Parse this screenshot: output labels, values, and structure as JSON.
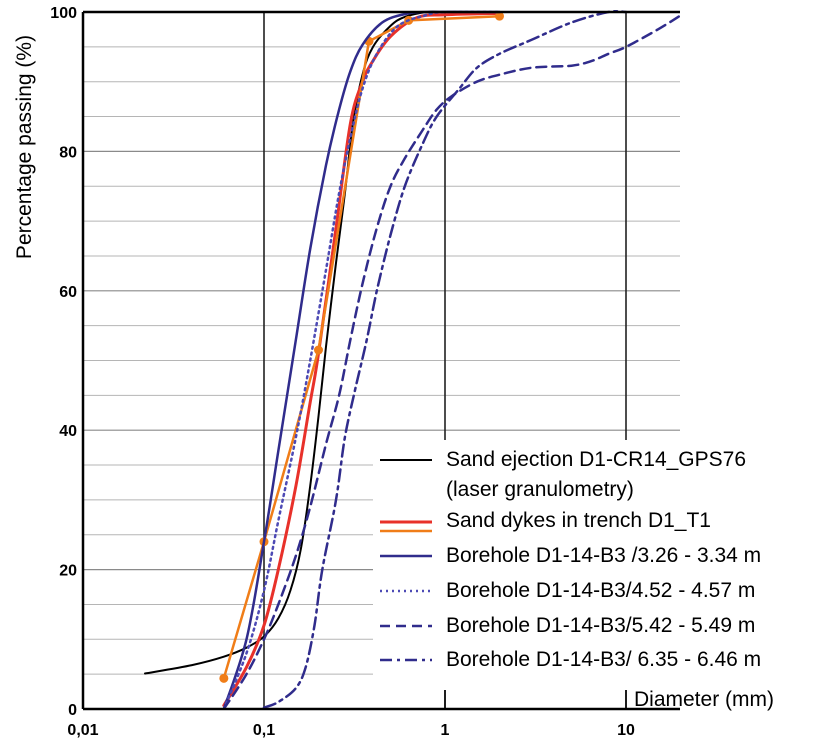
{
  "chart_data": {
    "type": "line",
    "xscale": "log",
    "xlim": [
      0.01,
      30
    ],
    "ylim": [
      0,
      100
    ],
    "xlabel": "Diameter (mm)",
    "ylabel": "Percentage passing (%)",
    "x_tick_labels": [
      {
        "value": 0.01,
        "label": "0,01"
      },
      {
        "value": 0.1,
        "label": "0,1"
      },
      {
        "value": 1,
        "label": "1"
      },
      {
        "value": 10,
        "label": "10"
      }
    ],
    "y_tick_labels": [
      {
        "value": 0,
        "label": "0"
      },
      {
        "value": 20,
        "label": "20"
      },
      {
        "value": 40,
        "label": "40"
      },
      {
        "value": 60,
        "label": "60"
      },
      {
        "value": 80,
        "label": "80"
      },
      {
        "value": 100,
        "label": "100"
      }
    ],
    "legend_position": "bottom-right",
    "grid": true,
    "series": [
      {
        "name": "Sand ejection D1-CR14_GPS76",
        "name_line2": "(laser granulometry)",
        "color": "#000000",
        "style": "solid",
        "width": 2,
        "points": [
          [
            0.022,
            5.1
          ],
          [
            0.04,
            6.3
          ],
          [
            0.06,
            7.5
          ],
          [
            0.08,
            8.8
          ],
          [
            0.1,
            10.4
          ],
          [
            0.12,
            13
          ],
          [
            0.14,
            17
          ],
          [
            0.16,
            23
          ],
          [
            0.18,
            32
          ],
          [
            0.2,
            42
          ],
          [
            0.22,
            52
          ],
          [
            0.25,
            64
          ],
          [
            0.28,
            74
          ],
          [
            0.31,
            84
          ],
          [
            0.35,
            91
          ],
          [
            0.4,
            95
          ],
          [
            0.5,
            98
          ],
          [
            0.6,
            99.3
          ],
          [
            0.8,
            100
          ],
          [
            1,
            100
          ],
          [
            2,
            100
          ]
        ]
      },
      {
        "name": "Sand dykes in trench D1_T1",
        "color": "#e8312a",
        "style": "solid",
        "width": 3,
        "points": [
          [
            0.06,
            0.5
          ],
          [
            0.08,
            6
          ],
          [
            0.1,
            12
          ],
          [
            0.12,
            20
          ],
          [
            0.15,
            32
          ],
          [
            0.18,
            44
          ],
          [
            0.2,
            51
          ],
          [
            0.25,
            69
          ],
          [
            0.3,
            84
          ],
          [
            0.35,
            90
          ],
          [
            0.4,
            93
          ],
          [
            0.5,
            96.5
          ],
          [
            0.7,
            99.2
          ],
          [
            1,
            99.6
          ],
          [
            2,
            99.8
          ]
        ]
      },
      {
        "name": "",
        "legend_shared_with": "Sand dykes in trench D1_T1",
        "color": "#f07d18",
        "style": "solid",
        "width": 2.5,
        "markers": true,
        "points": [
          [
            0.06,
            4.4
          ],
          [
            0.1,
            24
          ],
          [
            0.2,
            51.5
          ],
          [
            0.38,
            95.8
          ],
          [
            0.63,
            98.8
          ],
          [
            2,
            99.4
          ]
        ]
      },
      {
        "name": "Borehole D1-14-B3 /3.26 - 3.34 m",
        "color": "#302c8c",
        "style": "solid",
        "width": 2.5,
        "points": [
          [
            0.06,
            0
          ],
          [
            0.08,
            10
          ],
          [
            0.1,
            24
          ],
          [
            0.12,
            37
          ],
          [
            0.15,
            53
          ],
          [
            0.18,
            66
          ],
          [
            0.22,
            78
          ],
          [
            0.26,
            86
          ],
          [
            0.3,
            91.5
          ],
          [
            0.35,
            95.3
          ],
          [
            0.45,
            98.5
          ],
          [
            0.6,
            99.7
          ],
          [
            0.8,
            100
          ],
          [
            2,
            100
          ]
        ]
      },
      {
        "name": "Borehole D1-14-B3/4.52 - 4.57 m",
        "color": "#4d4ab5",
        "style": "dotted",
        "width": 2.5,
        "points": [
          [
            0.06,
            0
          ],
          [
            0.08,
            8
          ],
          [
            0.1,
            17
          ],
          [
            0.12,
            27
          ],
          [
            0.15,
            39
          ],
          [
            0.18,
            50
          ],
          [
            0.22,
            63
          ],
          [
            0.26,
            74
          ],
          [
            0.3,
            82
          ],
          [
            0.35,
            89
          ],
          [
            0.42,
            94
          ],
          [
            0.55,
            98
          ],
          [
            0.8,
            99.6
          ],
          [
            1,
            100
          ],
          [
            2,
            100
          ]
        ]
      },
      {
        "name": "Borehole D1-14-B3/5.42 - 5.49 m",
        "color": "#302c8c",
        "style": "dashed",
        "width": 2.5,
        "points": [
          [
            0.06,
            0
          ],
          [
            0.08,
            5
          ],
          [
            0.1,
            10
          ],
          [
            0.12,
            15
          ],
          [
            0.15,
            22
          ],
          [
            0.18,
            29
          ],
          [
            0.22,
            38
          ],
          [
            0.26,
            45
          ],
          [
            0.3,
            53
          ],
          [
            0.35,
            61
          ],
          [
            0.42,
            69
          ],
          [
            0.5,
            75
          ],
          [
            0.6,
            79
          ],
          [
            0.75,
            83
          ],
          [
            0.9,
            86
          ],
          [
            1.1,
            88
          ],
          [
            1.5,
            90
          ],
          [
            2,
            91
          ],
          [
            3,
            92
          ],
          [
            5,
            92.3
          ],
          [
            6.5,
            93
          ],
          [
            8,
            94
          ],
          [
            10,
            95
          ],
          [
            15,
            97.5
          ],
          [
            20,
            99.5
          ]
        ]
      },
      {
        "name": "Borehole D1-14-B3/ 6.35 - 6.46 m",
        "color": "#302c8c",
        "style": "dashdot",
        "width": 2.5,
        "points": [
          [
            0.1,
            0.2
          ],
          [
            0.12,
            1
          ],
          [
            0.15,
            3
          ],
          [
            0.17,
            6
          ],
          [
            0.19,
            12
          ],
          [
            0.21,
            20
          ],
          [
            0.25,
            30
          ],
          [
            0.28,
            39
          ],
          [
            0.32,
            46
          ],
          [
            0.37,
            53
          ],
          [
            0.42,
            60
          ],
          [
            0.5,
            68
          ],
          [
            0.6,
            75
          ],
          [
            0.75,
            81
          ],
          [
            0.9,
            85
          ],
          [
            1.2,
            89
          ],
          [
            1.5,
            92
          ],
          [
            2,
            94
          ],
          [
            3,
            96
          ],
          [
            5,
            98.5
          ],
          [
            8,
            100
          ],
          [
            10,
            100
          ]
        ]
      }
    ]
  }
}
